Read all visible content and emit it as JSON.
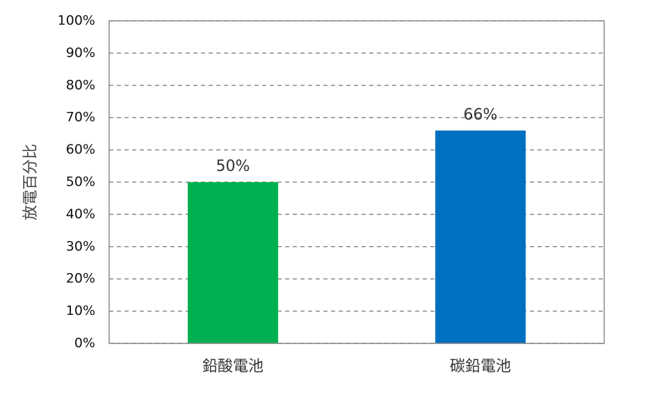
{
  "chart_data": {
    "type": "bar",
    "y_label": "放電百分比",
    "categories": [
      "鉛酸電池",
      "碳鉛電池"
    ],
    "values": [
      50,
      66
    ],
    "value_labels": [
      "50%",
      "66%"
    ],
    "colors": [
      "#00b050",
      "#0070c0"
    ],
    "ylim": [
      0,
      100
    ],
    "yticks": [
      {
        "value": 0,
        "label": "0%"
      },
      {
        "value": 10,
        "label": "10%"
      },
      {
        "value": 20,
        "label": "20%"
      },
      {
        "value": 30,
        "label": "30%"
      },
      {
        "value": 40,
        "label": "40%"
      },
      {
        "value": 50,
        "label": "50%"
      },
      {
        "value": 60,
        "label": "60%"
      },
      {
        "value": 70,
        "label": "70%"
      },
      {
        "value": 80,
        "label": "80%"
      },
      {
        "value": 90,
        "label": "90%"
      },
      {
        "value": 100,
        "label": "100%"
      }
    ],
    "grid": true
  }
}
